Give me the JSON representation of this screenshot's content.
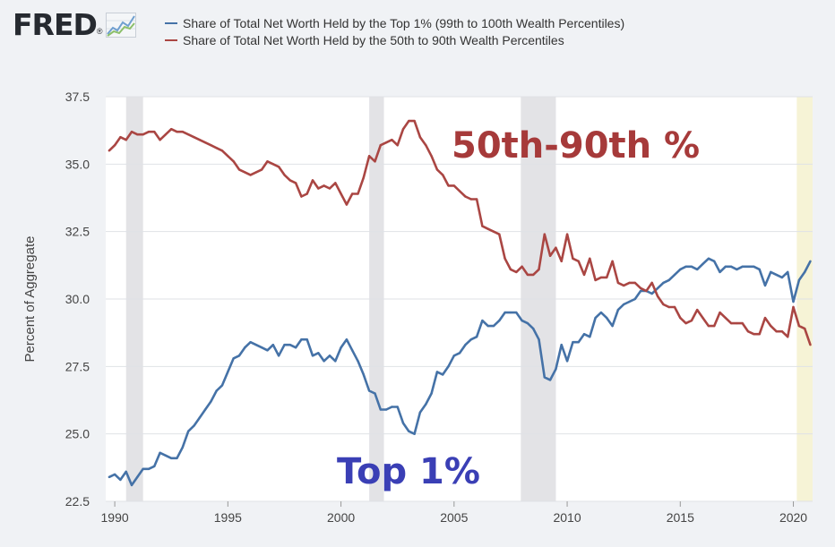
{
  "logo": {
    "text": "FRED",
    "mark": "®",
    "icon": "line-graph-icon"
  },
  "legend": [
    {
      "label": "Share of Total Net Worth Held by the Top 1% (99th to 100th Wealth Percentiles)",
      "color": "#4572a7"
    },
    {
      "label": "Share of Total Net Worth Held by the 50th to 90th Wealth Percentiles",
      "color": "#aa4643"
    }
  ],
  "annotations": {
    "upper": {
      "text": "50th-90th %",
      "color": "#a63a3a"
    },
    "lower": {
      "text": "Top 1%",
      "color": "#3a3fb5"
    }
  },
  "chart_data": {
    "type": "line",
    "title": "",
    "xlabel": "",
    "ylabel": "Percent of Aggregate",
    "xlim": [
      1989.6,
      2020.85
    ],
    "ylim": [
      22.5,
      37.5
    ],
    "yticks": [
      22.5,
      25.0,
      27.5,
      30.0,
      32.5,
      35.0,
      37.5
    ],
    "ytick_labels": [
      "22.5",
      "25.0",
      "27.5",
      "30.0",
      "32.5",
      "35.0",
      "37.5"
    ],
    "xticks": [
      1990,
      1995,
      2000,
      2005,
      2010,
      2015,
      2020
    ],
    "xtick_labels": [
      "1990",
      "1995",
      "2000",
      "2005",
      "2010",
      "2015",
      "2020"
    ],
    "grid": "horizontal",
    "recessions": [
      [
        1990.5,
        1991.25
      ],
      [
        2001.25,
        2001.9
      ],
      [
        2007.95,
        2009.5
      ]
    ],
    "highlight": [
      2020.15,
      2020.85
    ],
    "series": [
      {
        "name": "Share of Total Net Worth Held by the Top 1% (99th to 100th Wealth Percentiles)",
        "color": "#4572a7",
        "points": [
          [
            1989.75,
            23.4
          ],
          [
            1990.0,
            23.5
          ],
          [
            1990.25,
            23.3
          ],
          [
            1990.5,
            23.6
          ],
          [
            1990.75,
            23.1
          ],
          [
            1991.0,
            23.4
          ],
          [
            1991.25,
            23.7
          ],
          [
            1991.5,
            23.7
          ],
          [
            1991.75,
            23.8
          ],
          [
            1992.0,
            24.3
          ],
          [
            1992.25,
            24.2
          ],
          [
            1992.5,
            24.1
          ],
          [
            1992.75,
            24.1
          ],
          [
            1993.0,
            24.5
          ],
          [
            1993.25,
            25.1
          ],
          [
            1993.5,
            25.3
          ],
          [
            1993.75,
            25.6
          ],
          [
            1994.0,
            25.9
          ],
          [
            1994.25,
            26.2
          ],
          [
            1994.5,
            26.6
          ],
          [
            1994.75,
            26.8
          ],
          [
            1995.0,
            27.3
          ],
          [
            1995.25,
            27.8
          ],
          [
            1995.5,
            27.9
          ],
          [
            1995.75,
            28.2
          ],
          [
            1996.0,
            28.4
          ],
          [
            1996.25,
            28.3
          ],
          [
            1996.5,
            28.2
          ],
          [
            1996.75,
            28.1
          ],
          [
            1997.0,
            28.3
          ],
          [
            1997.25,
            27.9
          ],
          [
            1997.5,
            28.3
          ],
          [
            1997.75,
            28.3
          ],
          [
            1998.0,
            28.2
          ],
          [
            1998.25,
            28.5
          ],
          [
            1998.5,
            28.5
          ],
          [
            1998.75,
            27.9
          ],
          [
            1999.0,
            28.0
          ],
          [
            1999.25,
            27.7
          ],
          [
            1999.5,
            27.9
          ],
          [
            1999.75,
            27.7
          ],
          [
            2000.0,
            28.2
          ],
          [
            2000.25,
            28.5
          ],
          [
            2000.5,
            28.1
          ],
          [
            2000.75,
            27.7
          ],
          [
            2001.0,
            27.2
          ],
          [
            2001.25,
            26.6
          ],
          [
            2001.5,
            26.5
          ],
          [
            2001.75,
            25.9
          ],
          [
            2002.0,
            25.9
          ],
          [
            2002.25,
            26.0
          ],
          [
            2002.5,
            26.0
          ],
          [
            2002.75,
            25.4
          ],
          [
            2003.0,
            25.1
          ],
          [
            2003.25,
            25.0
          ],
          [
            2003.5,
            25.8
          ],
          [
            2003.75,
            26.1
          ],
          [
            2004.0,
            26.5
          ],
          [
            2004.25,
            27.3
          ],
          [
            2004.5,
            27.2
          ],
          [
            2004.75,
            27.5
          ],
          [
            2005.0,
            27.9
          ],
          [
            2005.25,
            28.0
          ],
          [
            2005.5,
            28.3
          ],
          [
            2005.75,
            28.5
          ],
          [
            2006.0,
            28.6
          ],
          [
            2006.25,
            29.2
          ],
          [
            2006.5,
            29.0
          ],
          [
            2006.75,
            29.0
          ],
          [
            2007.0,
            29.2
          ],
          [
            2007.25,
            29.5
          ],
          [
            2007.5,
            29.5
          ],
          [
            2007.75,
            29.5
          ],
          [
            2008.0,
            29.2
          ],
          [
            2008.25,
            29.1
          ],
          [
            2008.5,
            28.9
          ],
          [
            2008.75,
            28.5
          ],
          [
            2009.0,
            27.1
          ],
          [
            2009.25,
            27.0
          ],
          [
            2009.5,
            27.4
          ],
          [
            2009.75,
            28.3
          ],
          [
            2010.0,
            27.7
          ],
          [
            2010.25,
            28.4
          ],
          [
            2010.5,
            28.4
          ],
          [
            2010.75,
            28.7
          ],
          [
            2011.0,
            28.6
          ],
          [
            2011.25,
            29.3
          ],
          [
            2011.5,
            29.5
          ],
          [
            2011.75,
            29.3
          ],
          [
            2012.0,
            29.0
          ],
          [
            2012.25,
            29.6
          ],
          [
            2012.5,
            29.8
          ],
          [
            2012.75,
            29.9
          ],
          [
            2013.0,
            30.0
          ],
          [
            2013.25,
            30.3
          ],
          [
            2013.5,
            30.3
          ],
          [
            2013.75,
            30.2
          ],
          [
            2014.0,
            30.4
          ],
          [
            2014.25,
            30.6
          ],
          [
            2014.5,
            30.7
          ],
          [
            2014.75,
            30.9
          ],
          [
            2015.0,
            31.1
          ],
          [
            2015.25,
            31.2
          ],
          [
            2015.5,
            31.2
          ],
          [
            2015.75,
            31.1
          ],
          [
            2016.0,
            31.3
          ],
          [
            2016.25,
            31.5
          ],
          [
            2016.5,
            31.4
          ],
          [
            2016.75,
            31.0
          ],
          [
            2017.0,
            31.2
          ],
          [
            2017.25,
            31.2
          ],
          [
            2017.5,
            31.1
          ],
          [
            2017.75,
            31.2
          ],
          [
            2018.0,
            31.2
          ],
          [
            2018.25,
            31.2
          ],
          [
            2018.5,
            31.1
          ],
          [
            2018.75,
            30.5
          ],
          [
            2019.0,
            31.0
          ],
          [
            2019.25,
            30.9
          ],
          [
            2019.5,
            30.8
          ],
          [
            2019.75,
            31.0
          ],
          [
            2020.0,
            29.9
          ],
          [
            2020.25,
            30.7
          ],
          [
            2020.5,
            31.0
          ],
          [
            2020.75,
            31.4
          ]
        ]
      },
      {
        "name": "Share of Total Net Worth Held by the 50th to 90th Wealth Percentiles",
        "color": "#aa4643",
        "points": [
          [
            1989.75,
            35.5
          ],
          [
            1990.0,
            35.7
          ],
          [
            1990.25,
            36.0
          ],
          [
            1990.5,
            35.9
          ],
          [
            1990.75,
            36.2
          ],
          [
            1991.0,
            36.1
          ],
          [
            1991.25,
            36.1
          ],
          [
            1991.5,
            36.2
          ],
          [
            1991.75,
            36.2
          ],
          [
            1992.0,
            35.9
          ],
          [
            1992.25,
            36.1
          ],
          [
            1992.5,
            36.3
          ],
          [
            1992.75,
            36.2
          ],
          [
            1993.0,
            36.2
          ],
          [
            1993.25,
            36.1
          ],
          [
            1993.5,
            36.0
          ],
          [
            1993.75,
            35.9
          ],
          [
            1994.0,
            35.8
          ],
          [
            1994.25,
            35.7
          ],
          [
            1994.5,
            35.6
          ],
          [
            1994.75,
            35.5
          ],
          [
            1995.0,
            35.3
          ],
          [
            1995.25,
            35.1
          ],
          [
            1995.5,
            34.8
          ],
          [
            1995.75,
            34.7
          ],
          [
            1996.0,
            34.6
          ],
          [
            1996.25,
            34.7
          ],
          [
            1996.5,
            34.8
          ],
          [
            1996.75,
            35.1
          ],
          [
            1997.0,
            35.0
          ],
          [
            1997.25,
            34.9
          ],
          [
            1997.5,
            34.6
          ],
          [
            1997.75,
            34.4
          ],
          [
            1998.0,
            34.3
          ],
          [
            1998.25,
            33.8
          ],
          [
            1998.5,
            33.9
          ],
          [
            1998.75,
            34.4
          ],
          [
            1999.0,
            34.1
          ],
          [
            1999.25,
            34.2
          ],
          [
            1999.5,
            34.1
          ],
          [
            1999.75,
            34.3
          ],
          [
            2000.0,
            33.9
          ],
          [
            2000.25,
            33.5
          ],
          [
            2000.5,
            33.9
          ],
          [
            2000.75,
            33.9
          ],
          [
            2001.0,
            34.5
          ],
          [
            2001.25,
            35.3
          ],
          [
            2001.5,
            35.1
          ],
          [
            2001.75,
            35.7
          ],
          [
            2002.0,
            35.8
          ],
          [
            2002.25,
            35.9
          ],
          [
            2002.5,
            35.7
          ],
          [
            2002.75,
            36.3
          ],
          [
            2003.0,
            36.6
          ],
          [
            2003.25,
            36.6
          ],
          [
            2003.5,
            36.0
          ],
          [
            2003.75,
            35.7
          ],
          [
            2004.0,
            35.3
          ],
          [
            2004.25,
            34.8
          ],
          [
            2004.5,
            34.6
          ],
          [
            2004.75,
            34.2
          ],
          [
            2005.0,
            34.2
          ],
          [
            2005.25,
            34.0
          ],
          [
            2005.5,
            33.8
          ],
          [
            2005.75,
            33.7
          ],
          [
            2006.0,
            33.7
          ],
          [
            2006.25,
            32.7
          ],
          [
            2006.5,
            32.6
          ],
          [
            2006.75,
            32.5
          ],
          [
            2007.0,
            32.4
          ],
          [
            2007.25,
            31.5
          ],
          [
            2007.5,
            31.1
          ],
          [
            2007.75,
            31.0
          ],
          [
            2008.0,
            31.2
          ],
          [
            2008.25,
            30.9
          ],
          [
            2008.5,
            30.9
          ],
          [
            2008.75,
            31.1
          ],
          [
            2009.0,
            32.4
          ],
          [
            2009.25,
            31.6
          ],
          [
            2009.5,
            31.9
          ],
          [
            2009.75,
            31.4
          ],
          [
            2010.0,
            32.4
          ],
          [
            2010.25,
            31.5
          ],
          [
            2010.5,
            31.4
          ],
          [
            2010.75,
            30.9
          ],
          [
            2011.0,
            31.5
          ],
          [
            2011.25,
            30.7
          ],
          [
            2011.5,
            30.8
          ],
          [
            2011.75,
            30.8
          ],
          [
            2012.0,
            31.4
          ],
          [
            2012.25,
            30.6
          ],
          [
            2012.5,
            30.5
          ],
          [
            2012.75,
            30.6
          ],
          [
            2013.0,
            30.6
          ],
          [
            2013.25,
            30.4
          ],
          [
            2013.5,
            30.3
          ],
          [
            2013.75,
            30.6
          ],
          [
            2014.0,
            30.1
          ],
          [
            2014.25,
            29.8
          ],
          [
            2014.5,
            29.7
          ],
          [
            2014.75,
            29.7
          ],
          [
            2015.0,
            29.3
          ],
          [
            2015.25,
            29.1
          ],
          [
            2015.5,
            29.2
          ],
          [
            2015.75,
            29.6
          ],
          [
            2016.0,
            29.3
          ],
          [
            2016.25,
            29.0
          ],
          [
            2016.5,
            29.0
          ],
          [
            2016.75,
            29.5
          ],
          [
            2017.0,
            29.3
          ],
          [
            2017.25,
            29.1
          ],
          [
            2017.5,
            29.1
          ],
          [
            2017.75,
            29.1
          ],
          [
            2018.0,
            28.8
          ],
          [
            2018.25,
            28.7
          ],
          [
            2018.5,
            28.7
          ],
          [
            2018.75,
            29.3
          ],
          [
            2019.0,
            29.0
          ],
          [
            2019.25,
            28.8
          ],
          [
            2019.5,
            28.8
          ],
          [
            2019.75,
            28.6
          ],
          [
            2020.0,
            29.7
          ],
          [
            2020.25,
            29.0
          ],
          [
            2020.5,
            28.9
          ],
          [
            2020.75,
            28.3
          ]
        ]
      }
    ]
  }
}
